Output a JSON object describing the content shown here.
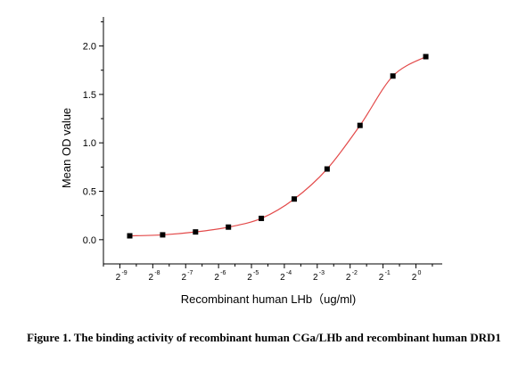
{
  "caption": "Figure 1. The binding activity of recombinant human CGa/LHb and recombinant human DRD1",
  "chart_data": {
    "type": "scatter",
    "title": "",
    "xlabel": "Recombinant human LHb（ug/ml)",
    "ylabel": "Mean OD value",
    "x_scale": "log2",
    "x_tick_base": "2",
    "x_tick_exponents": [
      "-9",
      "-8",
      "-7",
      "-6",
      "-5",
      "-4",
      "-3",
      "-2",
      "-1",
      "0"
    ],
    "xlim_exponent": [
      -9.5,
      0.8
    ],
    "ylim": [
      -0.25,
      2.3
    ],
    "y_ticks": [
      "0.0",
      "0.5",
      "1.0",
      "1.5",
      "2.0"
    ],
    "grid": false,
    "points_exponent": [
      -8.7,
      -7.7,
      -6.7,
      -5.7,
      -4.7,
      -3.7,
      -2.7,
      -1.7,
      -0.7,
      0.3
    ],
    "values": [
      0.04,
      0.05,
      0.08,
      0.13,
      0.22,
      0.42,
      0.73,
      1.18,
      1.69,
      1.89
    ],
    "fit_color": "#e34a4a",
    "marker_color": "#000000"
  }
}
